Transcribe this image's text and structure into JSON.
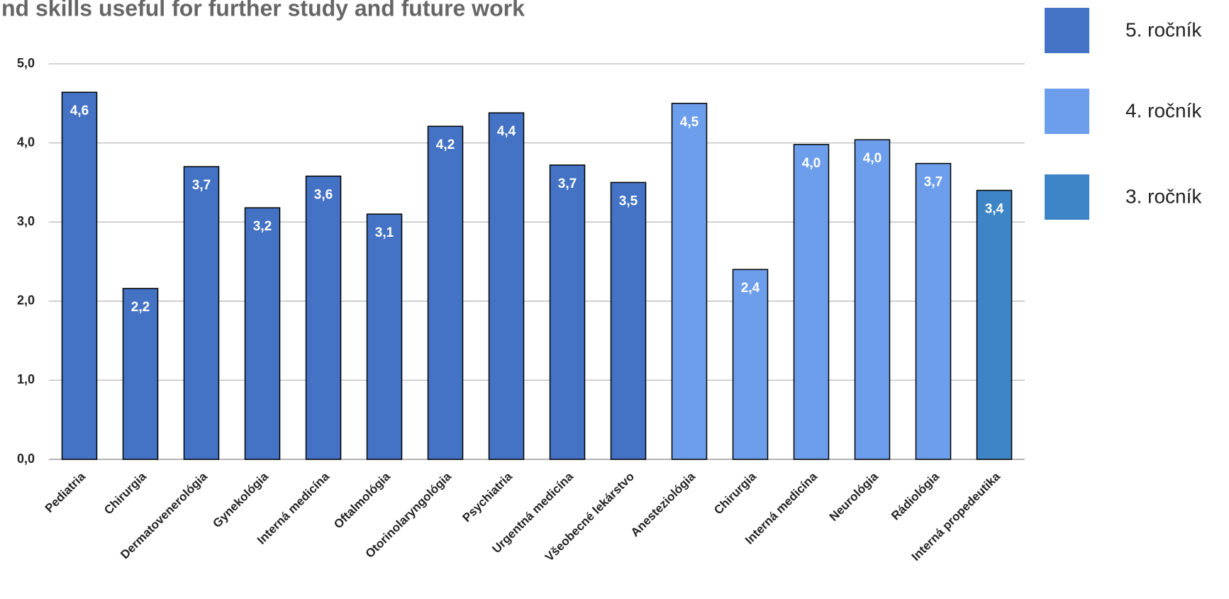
{
  "chart_data": {
    "type": "bar",
    "title": "nd skills useful for further study and future work",
    "categories": [
      "Pediatria",
      "Chirurgia",
      "Dermatovenerológia",
      "Gynekológia",
      "Interná medicína",
      "Oftalmológia",
      "Otorinolaryngológia",
      "Psychiatria",
      "Urgentná medicína",
      "Všeobecné lekárstvo",
      "Anesteziológia",
      "Chirurgia",
      "Interná medicína",
      "Neurológia",
      "Rádiológia",
      "Interná propedeutika"
    ],
    "series": [
      {
        "name": "5. ročník",
        "color": "#4472c4",
        "values": [
          4.64,
          2.16,
          3.7,
          3.18,
          3.58,
          3.1,
          4.21,
          4.38,
          3.72,
          3.5,
          null,
          null,
          null,
          null,
          null,
          null
        ],
        "value_labels": [
          "4,6",
          "2,2",
          "3,7",
          "3,2",
          "3,6",
          "3,1",
          "4,2",
          "4,4",
          "3,7",
          "3,5",
          null,
          null,
          null,
          null,
          null,
          null
        ]
      },
      {
        "name": "4. ročník",
        "color": "#6d9eeb",
        "values": [
          null,
          null,
          null,
          null,
          null,
          null,
          null,
          null,
          null,
          null,
          4.5,
          2.4,
          3.98,
          4.04,
          3.74,
          null
        ],
        "value_labels": [
          null,
          null,
          null,
          null,
          null,
          null,
          null,
          null,
          null,
          null,
          "4,5",
          "2,4",
          "4,0",
          "4,0",
          "3,7",
          null
        ]
      },
      {
        "name": "3. ročník",
        "color": "#3d85c6",
        "values": [
          null,
          null,
          null,
          null,
          null,
          null,
          null,
          null,
          null,
          null,
          null,
          null,
          null,
          null,
          null,
          3.4
        ],
        "value_labels": [
          null,
          null,
          null,
          null,
          null,
          null,
          null,
          null,
          null,
          null,
          null,
          null,
          null,
          null,
          null,
          "3,4"
        ]
      }
    ],
    "ylim": [
      0,
      5
    ],
    "yticks": [
      {
        "value": 0,
        "label": "0,0"
      },
      {
        "value": 1,
        "label": "1,0"
      },
      {
        "value": 2,
        "label": "2,0"
      },
      {
        "value": 3,
        "label": "3,0"
      },
      {
        "value": 4,
        "label": "4,0"
      },
      {
        "value": 5,
        "label": "5,0"
      }
    ],
    "grid": true,
    "legend": "right"
  }
}
